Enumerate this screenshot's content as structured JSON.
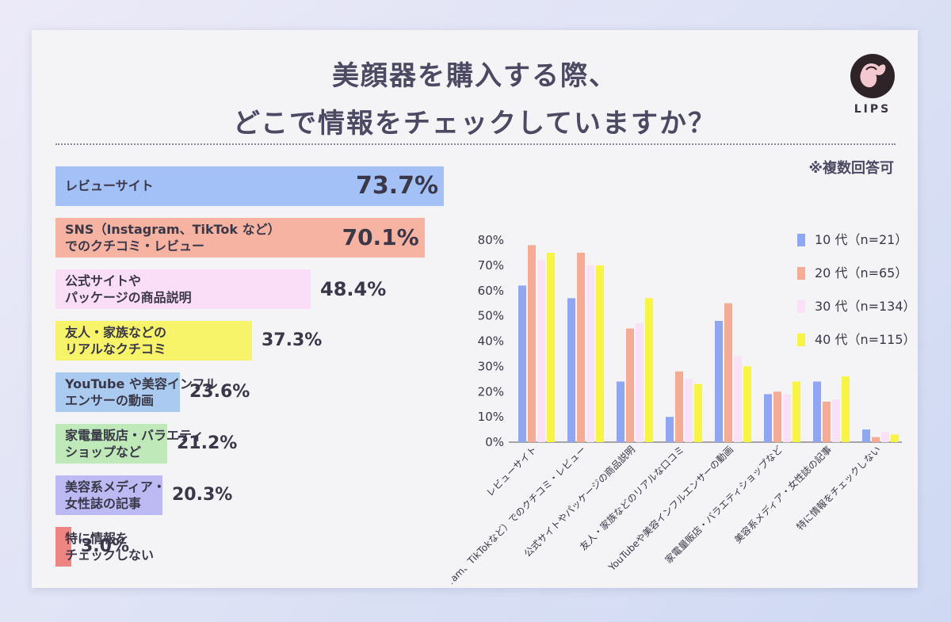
{
  "title_line1": "美顔器を購入する際、",
  "title_line2": "どこで情報をチェックしていますか？",
  "logo_text": "LIPS",
  "note": "※複数回答可",
  "overall": [
    {
      "label1": "レビューサイト",
      "label2": "",
      "value": "73.7%",
      "color": "#a4c1f7"
    },
    {
      "label1": "SNS（Instagram、TikTok など）",
      "label2": "でのクチコミ・レビュー",
      "value": "70.1%",
      "color": "#f6b3a1"
    },
    {
      "label1": "公式サイトや",
      "label2": "パッケージの商品説明",
      "value": "48.4%",
      "color": "#fadef8"
    },
    {
      "label1": "友人・家族などの",
      "label2": "リアルなクチコミ",
      "value": "37.3%",
      "color": "#f8f46a"
    },
    {
      "label1": "YouTube や美容インフル",
      "label2": "エンサーの動画",
      "value": "23.6%",
      "color": "#aacbef"
    },
    {
      "label1": "家電量販店・バラエティ",
      "label2": "ショップなど",
      "value": "21.2%",
      "color": "#bfe9b9"
    },
    {
      "label1": "美容系メディア・",
      "label2": "女性誌の記事",
      "value": "20.3%",
      "color": "#bcb9f3"
    },
    {
      "label1": "特に情報を",
      "label2": "チェックしない",
      "value": "3.0%",
      "color": "#ee8582"
    }
  ],
  "chart_data": [
    {
      "type": "bar",
      "title": "美顔器を購入する際、どこで情報をチェックしていますか？",
      "orientation": "horizontal",
      "categories": [
        "レビューサイト",
        "SNS（Instagram、TikTok など）でのクチコミ・レビュー",
        "公式サイトやパッケージの商品説明",
        "友人・家族などのリアルなクチコミ",
        "YouTube や美容インフルエンサーの動画",
        "家電量販店・バラエティショップなど",
        "美容系メディア・女性誌の記事",
        "特に情報をチェックしない"
      ],
      "values": [
        73.7,
        70.1,
        48.4,
        37.3,
        23.6,
        21.2,
        20.3,
        3.0
      ],
      "xlim": [
        0,
        100
      ]
    },
    {
      "type": "bar",
      "categories": [
        "レビューサイト",
        "SNS（Instagram、TikTokなど）でのクチコミ・レビュー",
        "公式サイトやパッケージの商品説明",
        "友人・家族などのリアルな口コミ",
        "YouTubeや美容インフルエンサーの動画",
        "家電量販店・バラエティショップなど",
        "美容系メディア・女性誌の記事",
        "特に情報をチェックしない"
      ],
      "series": [
        {
          "name": "10 代（n=21）",
          "color": "#8fa6f2",
          "values": [
            62,
            57,
            24,
            10,
            48,
            19,
            24,
            5
          ]
        },
        {
          "name": "20 代（n=65）",
          "color": "#f6ab94",
          "values": [
            78,
            75,
            45,
            28,
            55,
            20,
            16,
            2
          ]
        },
        {
          "name": "30 代（n=134）",
          "color": "#f9e2f7",
          "values": [
            72,
            70,
            47,
            25,
            34,
            19,
            17,
            4
          ]
        },
        {
          "name": "40 代（n=115）",
          "color": "#f7f542",
          "values": [
            75,
            70,
            57,
            23,
            30,
            24,
            26,
            3
          ]
        }
      ],
      "ylim": [
        0,
        80
      ],
      "yticks": [
        "0%",
        "10%",
        "20%",
        "30%",
        "40%",
        "50%",
        "60%",
        "70%",
        "80%"
      ],
      "grid": false,
      "legend": "top-right"
    }
  ]
}
